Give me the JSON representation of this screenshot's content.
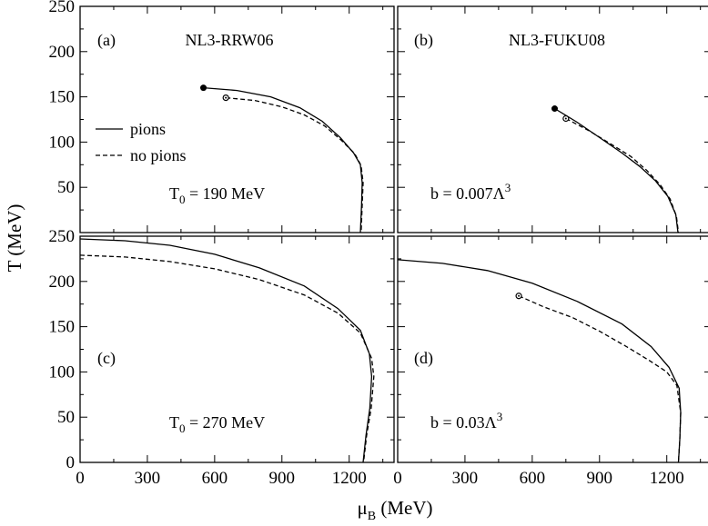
{
  "chart_data": [
    {
      "panel": "(a)",
      "type": "line",
      "title": "NL3-RRW06",
      "annotation": "T_0 = 190 MeV",
      "annotation_main": "T",
      "annotation_sub": "0",
      "annotation_rest": " = 190 MeV",
      "xlim": [
        0,
        1400
      ],
      "ylim": [
        0,
        250
      ],
      "x_ticks": [
        0,
        300,
        600,
        900,
        1200
      ],
      "y_ticks": [
        50,
        100,
        150,
        200,
        250
      ],
      "legend": [
        "pions",
        "no pions"
      ],
      "series": [
        {
          "name": "pions",
          "style": "solid",
          "points": [
            [
              550,
              160
            ],
            [
              700,
              157
            ],
            [
              850,
              150
            ],
            [
              980,
              138
            ],
            [
              1080,
              123
            ],
            [
              1160,
              105
            ],
            [
              1220,
              88
            ],
            [
              1250,
              75
            ],
            [
              1258,
              55
            ],
            [
              1255,
              30
            ],
            [
              1250,
              0
            ]
          ],
          "endpoint_marker": "filled"
        },
        {
          "name": "no pions",
          "style": "dashed",
          "points": [
            [
              650,
              149
            ],
            [
              780,
              146
            ],
            [
              900,
              139
            ],
            [
              1000,
              130
            ],
            [
              1090,
              118
            ],
            [
              1165,
              102
            ],
            [
              1225,
              87
            ],
            [
              1253,
              74
            ],
            [
              1262,
              55
            ],
            [
              1258,
              30
            ],
            [
              1253,
              0
            ]
          ],
          "endpoint_marker": "open"
        }
      ]
    },
    {
      "panel": "(b)",
      "type": "line",
      "title": "NL3-FUKU08",
      "annotation": "b = 0.007Λ^3",
      "annotation_main": "b = 0.007Λ",
      "annotation_sup": "3",
      "xlim": [
        0,
        1400
      ],
      "ylim": [
        0,
        250
      ],
      "x_ticks": [
        0,
        300,
        600,
        900,
        1200
      ],
      "y_ticks": [
        50,
        100,
        150,
        200,
        250
      ],
      "series": [
        {
          "name": "pions",
          "style": "solid",
          "points": [
            [
              700,
              137
            ],
            [
              800,
              122
            ],
            [
              900,
              105
            ],
            [
              1000,
              88
            ],
            [
              1080,
              73
            ],
            [
              1150,
              57
            ],
            [
              1205,
              40
            ],
            [
              1240,
              20
            ],
            [
              1250,
              0
            ]
          ],
          "endpoint_marker": "filled"
        },
        {
          "name": "no pions",
          "style": "dashed",
          "points": [
            [
              750,
              126
            ],
            [
              850,
              113
            ],
            [
              950,
              98
            ],
            [
              1040,
              84
            ],
            [
              1110,
              69
            ],
            [
              1170,
              53
            ],
            [
              1215,
              37
            ],
            [
              1243,
              18
            ],
            [
              1252,
              0
            ]
          ],
          "endpoint_marker": "open"
        }
      ]
    },
    {
      "panel": "(c)",
      "type": "line",
      "annotation": "T_0 = 270 MeV",
      "annotation_main": "T",
      "annotation_sub": "0",
      "annotation_rest": " = 270 MeV",
      "xlim": [
        0,
        1400
      ],
      "ylim": [
        0,
        250
      ],
      "x_ticks": [
        0,
        300,
        600,
        900,
        1200
      ],
      "y_ticks": [
        0,
        50,
        100,
        150,
        200,
        250
      ],
      "series": [
        {
          "name": "pions",
          "style": "solid",
          "points": [
            [
              0,
              247
            ],
            [
              200,
              245
            ],
            [
              400,
              240
            ],
            [
              600,
              230
            ],
            [
              800,
              215
            ],
            [
              1000,
              195
            ],
            [
              1150,
              170
            ],
            [
              1250,
              146
            ],
            [
              1290,
              120
            ],
            [
              1300,
              95
            ],
            [
              1292,
              60
            ],
            [
              1275,
              30
            ],
            [
              1262,
              0
            ]
          ]
        },
        {
          "name": "no pions",
          "style": "dashed",
          "points": [
            [
              0,
              229
            ],
            [
              200,
              227
            ],
            [
              400,
              222
            ],
            [
              600,
              214
            ],
            [
              800,
              202
            ],
            [
              1000,
              185
            ],
            [
              1150,
              165
            ],
            [
              1250,
              143
            ],
            [
              1300,
              115
            ],
            [
              1310,
              95
            ],
            [
              1298,
              60
            ],
            [
              1278,
              30
            ],
            [
              1264,
              0
            ]
          ]
        }
      ]
    },
    {
      "panel": "(d)",
      "type": "line",
      "annotation": "b = 0.03Λ^3",
      "annotation_main": "b = 0.03Λ",
      "annotation_sup": "3",
      "xlim": [
        0,
        1400
      ],
      "ylim": [
        0,
        250
      ],
      "x_ticks": [
        0,
        300,
        600,
        900,
        1200
      ],
      "y_ticks": [
        0,
        50,
        100,
        150,
        200,
        250
      ],
      "series": [
        {
          "name": "pions",
          "style": "solid",
          "points": [
            [
              0,
              224
            ],
            [
              200,
              220
            ],
            [
              400,
              212
            ],
            [
              600,
              198
            ],
            [
              800,
              178
            ],
            [
              1000,
              153
            ],
            [
              1130,
              128
            ],
            [
              1210,
              105
            ],
            [
              1255,
              82
            ],
            [
              1262,
              55
            ],
            [
              1258,
              25
            ],
            [
              1252,
              0
            ]
          ]
        },
        {
          "name": "no pions",
          "style": "dashed",
          "points": [
            [
              540,
              184
            ],
            [
              650,
              172
            ],
            [
              780,
              160
            ],
            [
              900,
              145
            ],
            [
              1020,
              128
            ],
            [
              1120,
              113
            ],
            [
              1200,
              100
            ],
            [
              1245,
              85
            ],
            [
              1262,
              55
            ],
            [
              1258,
              25
            ],
            [
              1252,
              0
            ]
          ],
          "endpoint_marker": "open"
        }
      ]
    }
  ],
  "axes": {
    "xlabel_main": "μ",
    "xlabel_sub": "B",
    "xlabel_rest": " (MeV)",
    "ylabel": "T (MeV)"
  }
}
